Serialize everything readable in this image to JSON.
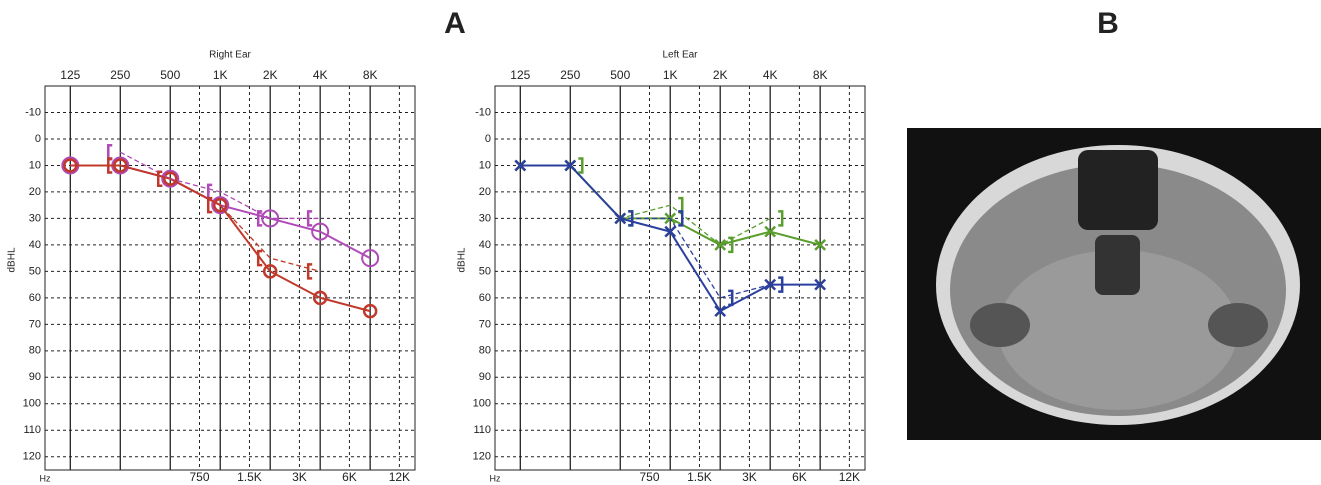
{
  "figure_labels": [
    "A",
    "B"
  ],
  "chart_data": [
    {
      "type": "line",
      "title": "Right Ear",
      "y_label": "dBHL",
      "x_unit": "Hz",
      "x": [
        125,
        250,
        500,
        1000,
        2000,
        4000,
        8000
      ],
      "xscale": "log",
      "xlim": [
        88,
        14900
      ],
      "ylim": [
        -20,
        125
      ],
      "y_inverted": true,
      "grid": true,
      "xticks": [
        125,
        250,
        500,
        {
          "value": 1000,
          "label": "1K"
        },
        {
          "value": 2000,
          "label": "2K"
        },
        {
          "value": 4000,
          "label": "4K"
        },
        {
          "value": 8000,
          "label": "8K"
        }
      ],
      "minor_xticks": [
        750,
        {
          "value": 1500,
          "label": "1.5K"
        },
        {
          "value": 3000,
          "label": "3K"
        },
        {
          "value": 6000,
          "label": "6K"
        },
        {
          "value": 12000,
          "label": "12K"
        }
      ],
      "yticks": [
        -10,
        0,
        10,
        20,
        30,
        40,
        50,
        60,
        70,
        80,
        90,
        100,
        110,
        120
      ],
      "series": [
        {
          "color": "#b04ab8",
          "marker": "circle-large",
          "dash": false,
          "values": [
            10,
            10,
            15,
            25,
            30,
            35,
            45
          ]
        },
        {
          "color": "#c0392b",
          "marker": "circle",
          "dash": false,
          "values": [
            10,
            10,
            15,
            25,
            50,
            60,
            65
          ]
        },
        {
          "color": "#b04ab8",
          "marker": "bracket-left",
          "dash": true,
          "values": [
            null,
            5,
            15,
            20,
            30,
            30,
            null
          ]
        },
        {
          "color": "#c0392b",
          "marker": "bracket-left",
          "dash": true,
          "values": [
            null,
            10,
            15,
            25,
            45,
            50,
            null
          ]
        }
      ]
    },
    {
      "type": "line",
      "title": "Left Ear",
      "y_label": "dBHL",
      "x_unit": "Hz",
      "x": [
        125,
        250,
        500,
        1000,
        2000,
        4000,
        8000
      ],
      "xscale": "log",
      "xlim": [
        88,
        14900
      ],
      "ylim": [
        -20,
        125
      ],
      "y_inverted": true,
      "grid": true,
      "xticks": [
        125,
        250,
        500,
        {
          "value": 1000,
          "label": "1K"
        },
        {
          "value": 2000,
          "label": "2K"
        },
        {
          "value": 4000,
          "label": "4K"
        },
        {
          "value": 8000,
          "label": "8K"
        }
      ],
      "minor_xticks": [
        750,
        {
          "value": 1500,
          "label": "1.5K"
        },
        {
          "value": 3000,
          "label": "3K"
        },
        {
          "value": 6000,
          "label": "6K"
        },
        {
          "value": 12000,
          "label": "12K"
        }
      ],
      "yticks": [
        -10,
        0,
        10,
        20,
        30,
        40,
        50,
        60,
        70,
        80,
        90,
        100,
        110,
        120
      ],
      "series": [
        {
          "color": "#5a9e2e",
          "marker": "x",
          "dash": false,
          "values": [
            10,
            10,
            30,
            30,
            40,
            35,
            40
          ]
        },
        {
          "color": "#5a9e2e",
          "marker": "bracket-right",
          "dash": true,
          "values": [
            null,
            10,
            30,
            25,
            40,
            30,
            null
          ]
        },
        {
          "color": "#2a3f9e",
          "marker": "x",
          "dash": false,
          "values": [
            10,
            10,
            30,
            35,
            65,
            55,
            55
          ]
        },
        {
          "color": "#2a3f9e",
          "marker": "bracket-right",
          "dash": true,
          "values": [
            null,
            null,
            30,
            30,
            60,
            55,
            null
          ]
        }
      ]
    }
  ]
}
